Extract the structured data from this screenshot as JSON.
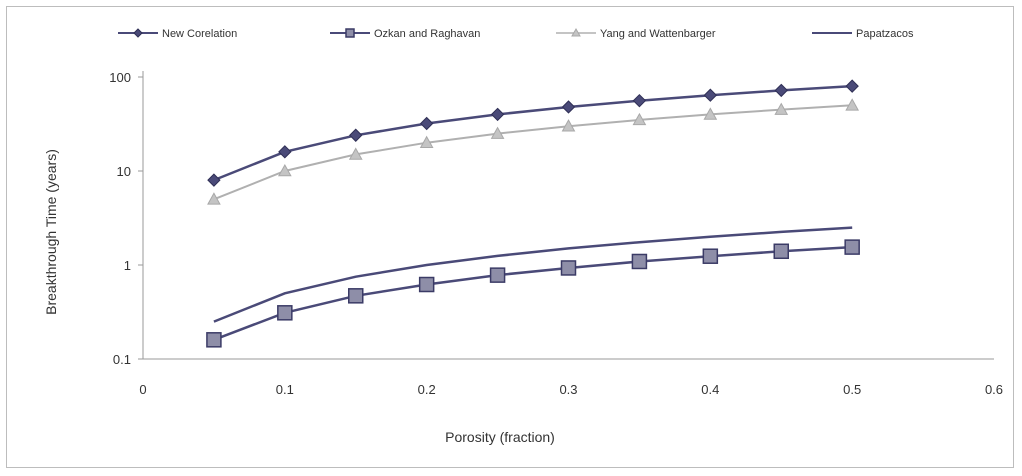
{
  "chart_data": {
    "type": "line",
    "title": "",
    "xlabel": "Porosity (fraction)",
    "ylabel": "Breakthrough Time (years)",
    "xlim": [
      0,
      0.6
    ],
    "ylim": [
      0.1,
      100
    ],
    "y_scale": "log",
    "grid": false,
    "legend_position": "top",
    "x_ticks": [
      "0",
      "0.1",
      "0.2",
      "0.3",
      "0.4",
      "0.5",
      "0.6"
    ],
    "y_ticks": [
      "0.1",
      "1",
      "10",
      "100"
    ],
    "x": [
      0.05,
      0.1,
      0.15,
      0.2,
      0.25,
      0.3,
      0.35,
      0.4,
      0.45,
      0.5
    ],
    "series": [
      {
        "name": "New Corelation",
        "marker": "diamond",
        "color": "#4a4a78",
        "values": [
          8,
          16,
          24,
          32,
          40,
          48,
          56,
          64,
          72,
          80
        ]
      },
      {
        "name": "Ozkan and Raghavan",
        "marker": "square",
        "color": "#4a4a78",
        "values": [
          0.16,
          0.31,
          0.47,
          0.62,
          0.78,
          0.93,
          1.09,
          1.24,
          1.4,
          1.55
        ]
      },
      {
        "name": "Yang and Wattenbarger",
        "marker": "triangle",
        "color": "#b0b0b0",
        "values": [
          5,
          10,
          15,
          20,
          25,
          30,
          35,
          40,
          45,
          50
        ]
      },
      {
        "name": "Papatzacos",
        "marker": "none",
        "color": "#4a4a78",
        "values": [
          0.25,
          0.5,
          0.75,
          1.0,
          1.25,
          1.5,
          1.75,
          2.0,
          2.25,
          2.5
        ]
      }
    ]
  }
}
